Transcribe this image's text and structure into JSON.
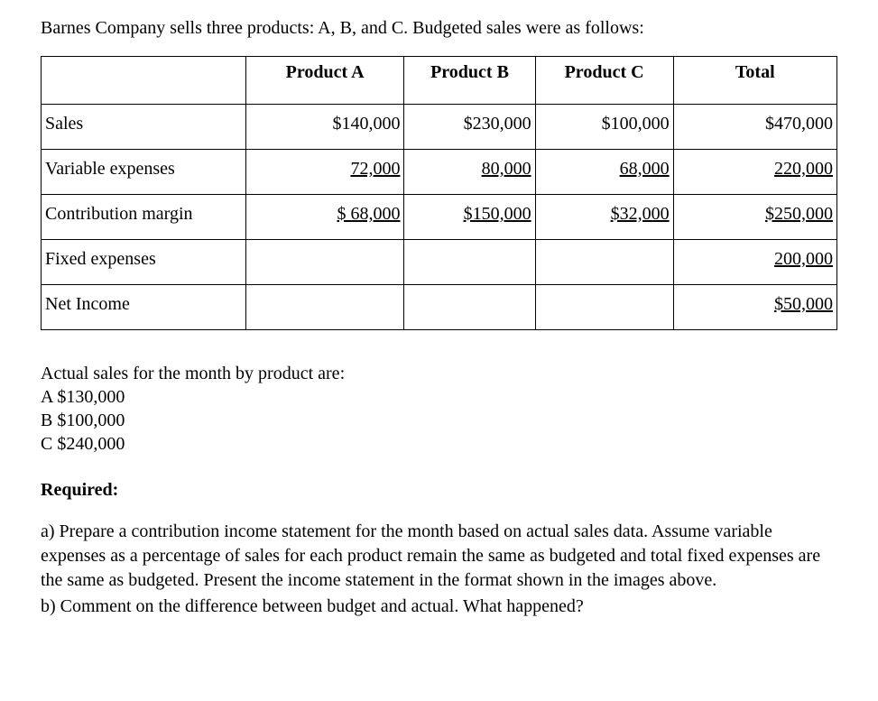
{
  "intro": "Barnes Company sells three products: A, B, and C.  Budgeted sales were as follows:",
  "table": {
    "headers": {
      "a": "Product A",
      "b": "Product B",
      "c": "Product C",
      "t": "Total"
    },
    "rows": {
      "sales": {
        "label": "Sales",
        "a": "$140,000",
        "b": "$230,000",
        "c": "$100,000",
        "t": "$470,000"
      },
      "varexp": {
        "label": "Variable expenses",
        "a": "72,000",
        "b": "80,000",
        "c": "68,000",
        "t": "220,000"
      },
      "contrib": {
        "label": "Contribution margin",
        "a": "$ 68,000",
        "b": "$150,000",
        "c": "$32,000",
        "t": "$250,000"
      },
      "fixed": {
        "label": "Fixed expenses",
        "a": "",
        "b": "",
        "c": "",
        "t": "200,000"
      },
      "net": {
        "label": "Net Income",
        "a": "",
        "b": "",
        "c": "",
        "t": "$50,000"
      }
    }
  },
  "actual": {
    "intro": "Actual sales for the month by product are:",
    "a": "A $130,000",
    "b": "B $100,000",
    "c": "C $240,000"
  },
  "required": {
    "heading": "Required:",
    "a": "a) Prepare a contribution income statement for the month based on actual sales data. Assume variable expenses as a percentage of sales for each product remain the same as budgeted and total fixed expenses are the same as budgeted. Present the income statement in the format shown in the images above.",
    "b": "b) Comment on the difference between budget and actual.  What happened?"
  }
}
